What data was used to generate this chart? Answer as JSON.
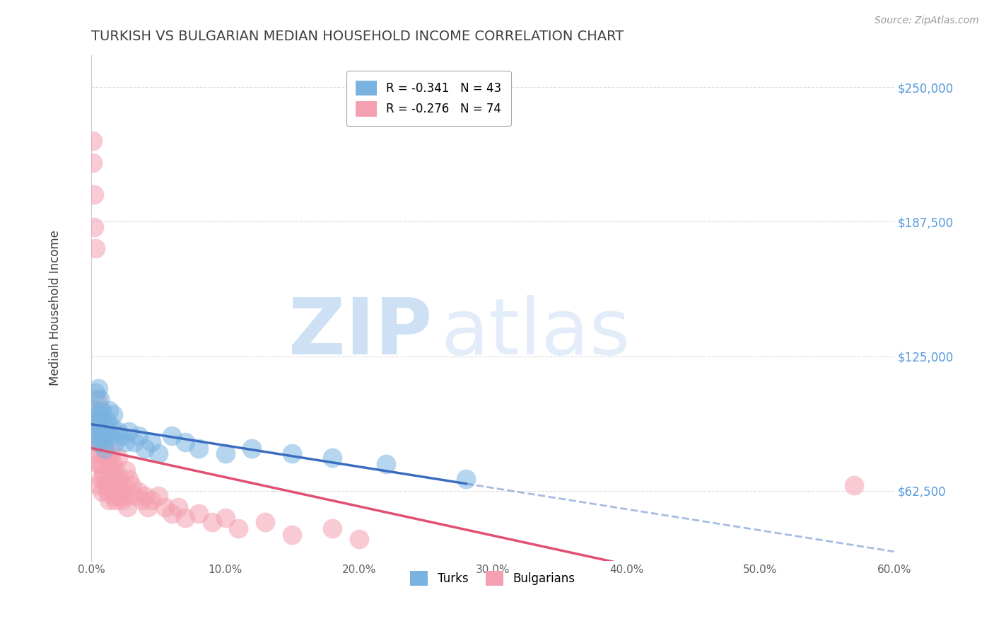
{
  "title": "TURKISH VS BULGARIAN MEDIAN HOUSEHOLD INCOME CORRELATION CHART",
  "source_text": "Source: ZipAtlas.com",
  "ylabel": "Median Household Income",
  "xlim": [
    0.0,
    0.6
  ],
  "ylim": [
    30000,
    265000
  ],
  "yticks": [
    62500,
    125000,
    187500,
    250000
  ],
  "ytick_labels": [
    "$62,500",
    "$125,000",
    "$187,500",
    "$250,000"
  ],
  "xticks": [
    0.0,
    0.1,
    0.2,
    0.3,
    0.4,
    0.5,
    0.6
  ],
  "xtick_labels": [
    "0.0%",
    "10.0%",
    "20.0%",
    "30.0%",
    "40.0%",
    "50.0%",
    "60.0%"
  ],
  "turks_color": "#7ab3e0",
  "bulgarians_color": "#f4a0b0",
  "turks_line_color": "#3a6dbf",
  "bulgarians_line_color": "#e05070",
  "background_color": "#ffffff",
  "grid_color": "#cccccc",
  "title_color": "#404040",
  "axis_label_color": "#404040",
  "ytick_label_color": "#5599dd",
  "xtick_label_color": "#606060",
  "legend_label1": "R = -0.341   N = 43",
  "legend_label2": "R = -0.276   N = 74",
  "watermark_zip": "ZIP",
  "watermark_atlas": "atlas",
  "turks_x": [
    0.001,
    0.002,
    0.003,
    0.003,
    0.004,
    0.004,
    0.005,
    0.005,
    0.005,
    0.006,
    0.006,
    0.007,
    0.007,
    0.008,
    0.008,
    0.009,
    0.01,
    0.01,
    0.011,
    0.012,
    0.013,
    0.014,
    0.015,
    0.016,
    0.018,
    0.02,
    0.022,
    0.025,
    0.028,
    0.032,
    0.035,
    0.04,
    0.045,
    0.05,
    0.06,
    0.07,
    0.08,
    0.1,
    0.12,
    0.15,
    0.18,
    0.22,
    0.28
  ],
  "turks_y": [
    100000,
    95000,
    108000,
    92000,
    98000,
    88000,
    110000,
    95000,
    85000,
    105000,
    90000,
    98000,
    85000,
    100000,
    88000,
    95000,
    92000,
    82000,
    88000,
    95000,
    100000,
    88000,
    92000,
    98000,
    85000,
    90000,
    88000,
    85000,
    90000,
    85000,
    88000,
    82000,
    85000,
    80000,
    88000,
    85000,
    82000,
    80000,
    82000,
    80000,
    78000,
    75000,
    68000
  ],
  "bulgarians_x": [
    0.001,
    0.001,
    0.002,
    0.002,
    0.003,
    0.003,
    0.003,
    0.004,
    0.004,
    0.004,
    0.005,
    0.005,
    0.005,
    0.005,
    0.006,
    0.006,
    0.006,
    0.007,
    0.007,
    0.007,
    0.008,
    0.008,
    0.008,
    0.009,
    0.009,
    0.01,
    0.01,
    0.01,
    0.011,
    0.011,
    0.012,
    0.012,
    0.013,
    0.013,
    0.014,
    0.015,
    0.015,
    0.016,
    0.016,
    0.017,
    0.018,
    0.018,
    0.019,
    0.02,
    0.02,
    0.021,
    0.022,
    0.023,
    0.024,
    0.025,
    0.026,
    0.027,
    0.028,
    0.03,
    0.032,
    0.035,
    0.038,
    0.04,
    0.042,
    0.045,
    0.05,
    0.055,
    0.06,
    0.065,
    0.07,
    0.08,
    0.09,
    0.1,
    0.11,
    0.13,
    0.15,
    0.18,
    0.2,
    0.57
  ],
  "bulgarians_y": [
    215000,
    225000,
    200000,
    185000,
    175000,
    95000,
    85000,
    95000,
    80000,
    105000,
    95000,
    85000,
    75000,
    65000,
    100000,
    90000,
    75000,
    95000,
    80000,
    68000,
    90000,
    75000,
    62000,
    85000,
    70000,
    92000,
    82000,
    68000,
    80000,
    65000,
    78000,
    62000,
    75000,
    58000,
    72000,
    80000,
    65000,
    75000,
    60000,
    68000,
    72000,
    58000,
    65000,
    78000,
    60000,
    68000,
    62000,
    58000,
    65000,
    60000,
    72000,
    55000,
    68000,
    65000,
    60000,
    62000,
    58000,
    60000,
    55000,
    58000,
    60000,
    55000,
    52000,
    55000,
    50000,
    52000,
    48000,
    50000,
    45000,
    48000,
    42000,
    45000,
    40000,
    65000
  ],
  "turks_line_x_end": 0.28,
  "turks_line_x_ext": 0.6,
  "bulgarians_line_x_end": 0.6
}
